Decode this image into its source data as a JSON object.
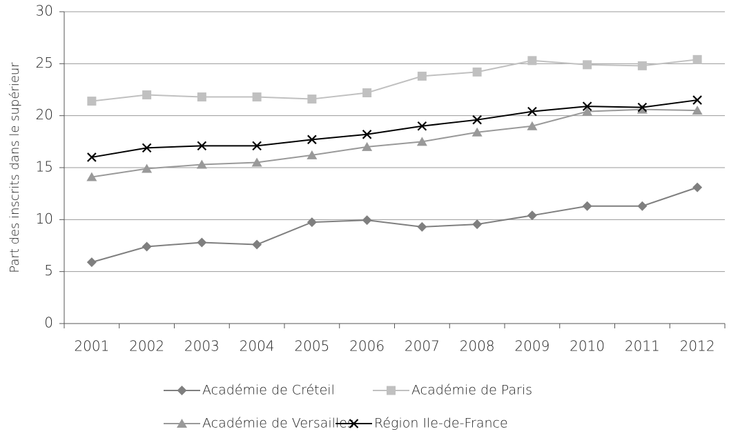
{
  "chart_data": {
    "type": "line",
    "y_label": "Part des inscrits dans le supérieur",
    "categories": [
      "2001",
      "2002",
      "2003",
      "2004",
      "2005",
      "2006",
      "2007",
      "2008",
      "2009",
      "2010",
      "2011",
      "2012"
    ],
    "series": [
      {
        "name": "Académie de Créteil",
        "color": "#7f7f7f",
        "marker": "diamond",
        "values": [
          5.9,
          7.4,
          7.8,
          7.6,
          9.75,
          9.95,
          9.3,
          9.55,
          10.4,
          11.3,
          11.3,
          13.1
        ]
      },
      {
        "name": "Académie de Paris",
        "color": "#c0c0c0",
        "marker": "square",
        "values": [
          21.4,
          22.0,
          21.8,
          21.8,
          21.6,
          22.2,
          23.8,
          24.2,
          25.3,
          24.9,
          24.8,
          25.4
        ]
      },
      {
        "name": "Académie de Versailles",
        "color": "#999999",
        "marker": "triangle",
        "values": [
          14.1,
          14.9,
          15.3,
          15.5,
          16.2,
          17.0,
          17.5,
          18.4,
          19.0,
          20.4,
          20.6,
          20.5
        ]
      },
      {
        "name": "Région Ile-de-France",
        "color": "#000000",
        "marker": "x",
        "values": [
          16.0,
          16.9,
          17.1,
          17.1,
          17.7,
          18.2,
          19.0,
          19.6,
          20.4,
          20.9,
          20.8,
          21.5
        ]
      }
    ],
    "ylim": [
      0,
      30
    ],
    "yticks": [
      0,
      5,
      10,
      15,
      20,
      25,
      30
    ],
    "grid": true
  }
}
